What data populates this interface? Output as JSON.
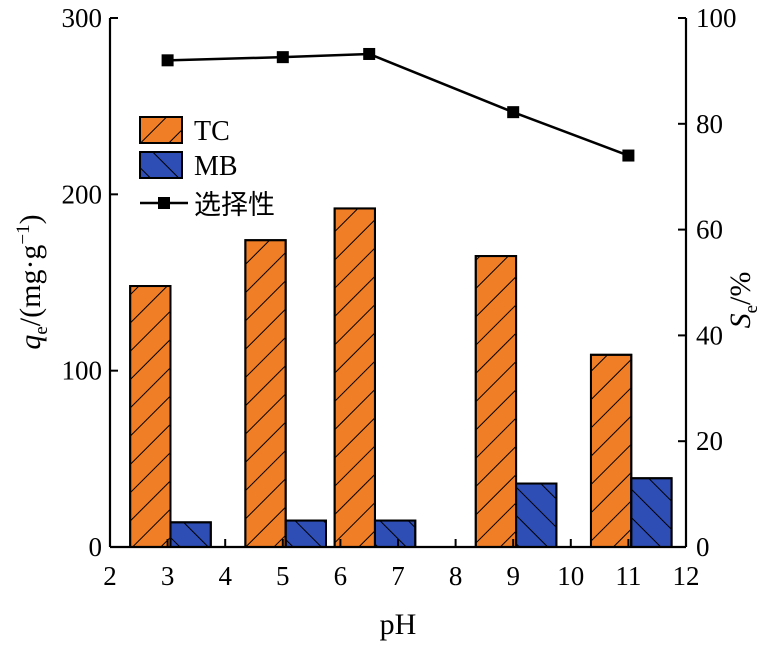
{
  "chart_data": {
    "type": "bar",
    "x_axis": {
      "label": "pH",
      "ticks": [
        "2",
        "3",
        "4",
        "5",
        "6",
        "7",
        "8",
        "9",
        "10",
        "11",
        "12"
      ],
      "range": [
        2,
        12
      ]
    },
    "y_left": {
      "label_prefix": "q",
      "label_sub": "e",
      "label_suffix": "/(mg·g",
      "label_sup": "−1",
      "label_end": ")",
      "ticks": [
        "0",
        "100",
        "200",
        "300"
      ],
      "range": [
        0,
        300
      ]
    },
    "y_right": {
      "label_prefix": "S",
      "label_sub": "e",
      "label_suffix": "/%",
      "ticks": [
        "0",
        "20",
        "40",
        "60",
        "80",
        "100"
      ],
      "range": [
        0,
        100
      ]
    },
    "series": [
      {
        "name": "TC",
        "type": "bar",
        "axis": "left",
        "color": "#F07E26",
        "hatch": "forward",
        "x_start": [
          2.35,
          4.35,
          5.9,
          8.35,
          10.35
        ],
        "x_end": [
          3.05,
          5.05,
          6.6,
          9.05,
          11.05
        ],
        "values": [
          148,
          174,
          192,
          165,
          109
        ]
      },
      {
        "name": "MB",
        "type": "bar",
        "axis": "left",
        "color": "#2E4DB5",
        "hatch": "backward",
        "x_start": [
          3.05,
          5.05,
          6.6,
          9.05,
          11.05
        ],
        "x_end": [
          3.75,
          5.75,
          7.3,
          9.75,
          11.75
        ],
        "values": [
          14,
          15,
          15,
          36,
          39
        ]
      },
      {
        "name": "选择性",
        "type": "line",
        "axis": "right",
        "color": "#000000",
        "x": [
          3.0,
          5.0,
          6.5,
          9.0,
          11.0
        ],
        "values": [
          92,
          92.6,
          93.2,
          82.2,
          74
        ]
      }
    ],
    "legend": {
      "position": "top-left",
      "entries": [
        "TC",
        "MB",
        "选择性"
      ]
    },
    "grid": false
  }
}
